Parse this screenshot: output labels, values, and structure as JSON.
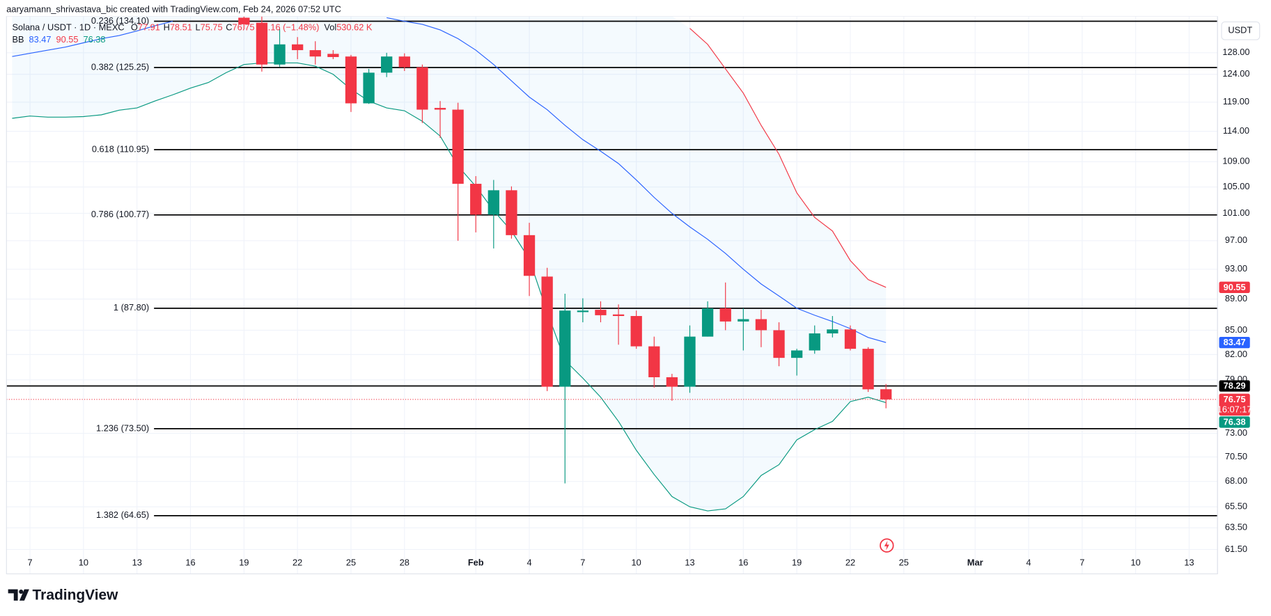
{
  "header": {
    "credit": "aaryamann_shrivastava_bic created with TradingView.com, Feb 24, 2026 07:52 UTC"
  },
  "legend": {
    "symbol": "Solana / USDT · 1D · MEXC",
    "ohlc_labels": [
      "O",
      "H",
      "L",
      "C"
    ],
    "change": "−1.16 (−1.48%)",
    "vol_label": "Vol",
    "volume": "530.62 K",
    "indicator": "BB"
  },
  "currency": "USDT",
  "countdown": "16:07:17",
  "footer": {
    "brand": "TradingView"
  },
  "chart_data": {
    "type": "candlestick",
    "log_scale": true,
    "grid": true,
    "up_color": "#089981",
    "down_color": "#f23645",
    "band_fill": "#2196f3",
    "x": [
      6,
      7,
      8,
      9,
      10,
      11,
      12,
      13,
      14,
      15,
      16,
      17,
      18,
      19,
      20,
      21,
      22,
      23,
      24,
      25,
      26,
      27,
      28,
      29,
      30,
      31,
      32,
      33,
      34,
      35,
      36,
      37,
      38,
      39,
      40,
      41,
      42,
      43,
      44,
      45,
      46,
      47,
      48,
      49,
      50,
      51,
      52,
      53,
      54,
      55
    ],
    "open": [
      null,
      null,
      null,
      null,
      null,
      null,
      null,
      null,
      null,
      null,
      null,
      null,
      null,
      134.8,
      133.8,
      125.8,
      129.6,
      128.5,
      127.8,
      127.3,
      118.8,
      124.3,
      127.3,
      125.3,
      118.0,
      117.7,
      105.5,
      100.8,
      104.5,
      97.8,
      92.0,
      78.2,
      87.3,
      87.6,
      87.0,
      86.8,
      83.0,
      79.3,
      78.2,
      84.2,
      87.8,
      86.1,
      86.4,
      85.0,
      81.6,
      82.5,
      84.6,
      85.1,
      82.7,
      77.91
    ],
    "high": [
      null,
      null,
      null,
      null,
      null,
      null,
      null,
      null,
      null,
      null,
      null,
      null,
      null,
      136.5,
      136.0,
      132.6,
      131.0,
      130.2,
      128.5,
      127.6,
      125.0,
      128.0,
      127.9,
      125.8,
      119.2,
      118.9,
      106.7,
      106.1,
      105.1,
      99.6,
      93.2,
      89.7,
      89.1,
      88.7,
      88.3,
      87.5,
      84.2,
      79.7,
      85.6,
      88.7,
      91.2,
      87.8,
      87.6,
      86.0,
      82.7,
      85.6,
      86.8,
      85.6,
      82.9,
      78.51
    ],
    "low": [
      null,
      null,
      null,
      null,
      null,
      null,
      null,
      null,
      null,
      null,
      null,
      null,
      null,
      132.5,
      124.5,
      125.4,
      126.8,
      125.8,
      126.8,
      117.3,
      118.7,
      123.5,
      124.6,
      115.4,
      112.9,
      97.0,
      98.2,
      95.9,
      97.3,
      89.4,
      77.7,
      67.8,
      86.0,
      86.0,
      83.2,
      82.7,
      78.1,
      76.6,
      77.5,
      84.2,
      85.0,
      82.5,
      82.9,
      80.6,
      79.5,
      82.1,
      84.1,
      82.5,
      77.6,
      75.75
    ],
    "close": [
      null,
      null,
      null,
      null,
      null,
      null,
      null,
      null,
      null,
      null,
      null,
      null,
      null,
      133.5,
      125.8,
      129.6,
      128.5,
      127.3,
      127.2,
      118.8,
      124.3,
      127.3,
      125.3,
      117.7,
      117.7,
      105.5,
      100.8,
      104.5,
      97.8,
      92.1,
      78.2,
      87.5,
      87.5,
      86.9,
      86.8,
      83.0,
      79.3,
      78.2,
      84.2,
      87.8,
      86.1,
      86.4,
      85.0,
      81.6,
      82.5,
      84.6,
      85.1,
      82.7,
      77.9,
      76.75
    ],
    "series": [
      {
        "color": "#2962ff",
        "values": [
          127.3,
          127.9,
          128.5,
          129.1,
          129.9,
          130.7,
          131.3,
          132.2,
          133.2,
          134.1,
          null,
          null,
          null,
          null,
          null,
          null,
          null,
          null,
          null,
          null,
          null,
          134.8,
          134.1,
          133.5,
          132.4,
          130.7,
          128.5,
          125.8,
          122.8,
          119.9,
          117.7,
          115.0,
          112.6,
          110.7,
          108.7,
          106.1,
          103.4,
          101.0,
          99.0,
          97.2,
          95.2,
          93.0,
          91.0,
          89.4,
          87.8,
          86.9,
          86.1,
          85.2,
          84.1,
          83.47
        ]
      },
      {
        "color": "#f23645",
        "values": [
          null,
          null,
          null,
          null,
          null,
          null,
          null,
          null,
          null,
          null,
          null,
          null,
          null,
          null,
          null,
          null,
          null,
          null,
          null,
          null,
          null,
          null,
          null,
          null,
          null,
          null,
          null,
          null,
          null,
          null,
          null,
          null,
          null,
          null,
          null,
          null,
          null,
          null,
          132.7,
          129.6,
          125.0,
          120.6,
          115.0,
          110.2,
          104.1,
          100.4,
          98.4,
          94.2,
          91.6,
          90.55
        ]
      },
      {
        "color": "#089981",
        "values": [
          116.2,
          116.6,
          116.4,
          116.4,
          116.5,
          116.8,
          117.6,
          118.0,
          119.2,
          120.3,
          121.5,
          122.5,
          124.3,
          125.8,
          126.1,
          126.1,
          126.1,
          125.5,
          124.0,
          121.3,
          119.2,
          118.0,
          117.5,
          115.7,
          113.2,
          108.3,
          105.1,
          101.4,
          98.4,
          94.4,
          87.3,
          81.3,
          79.2,
          77.0,
          74.3,
          71.2,
          68.7,
          66.5,
          65.5,
          65.1,
          65.3,
          66.5,
          68.6,
          69.7,
          72.3,
          73.4,
          74.3,
          76.5,
          77.0,
          76.38
        ]
      }
    ],
    "fib_levels": [
      {
        "value": 134.1,
        "label": "0.236 (134.10)"
      },
      {
        "value": 125.25,
        "label": "0.382 (125.25)"
      },
      {
        "value": 110.95,
        "label": "0.618 (110.95)"
      },
      {
        "value": 100.77,
        "label": "0.786 (100.77)"
      },
      {
        "value": 87.8,
        "label": "1 (87.80)"
      },
      {
        "value": 73.5,
        "label": "1.236 (73.50)"
      },
      {
        "value": 64.65,
        "label": "1.382 (64.65)"
      }
    ],
    "hline": 78.29,
    "xlim": [
      5.682,
      73.59
    ],
    "ylim": [
      59.33,
      135.1
    ],
    "xticks": [
      7,
      10,
      13,
      16,
      19,
      22,
      25,
      28,
      {
        "value": 32,
        "label": "Feb"
      },
      {
        "value": 35,
        "label": "4"
      },
      {
        "value": 38,
        "label": "7"
      },
      {
        "value": 41,
        "label": "10"
      },
      {
        "value": 44,
        "label": "13"
      },
      {
        "value": 47,
        "label": "16"
      },
      {
        "value": 50,
        "label": "19"
      },
      {
        "value": 53,
        "label": "22"
      },
      {
        "value": 56,
        "label": "25"
      },
      {
        "value": 60,
        "label": "Mar"
      },
      {
        "value": 63,
        "label": "4"
      },
      {
        "value": 66,
        "label": "7"
      },
      {
        "value": 69,
        "label": "10"
      },
      {
        "value": 72,
        "label": "13"
      }
    ],
    "yticks": [
      {
        "value": 61.5,
        "label": "61.50"
      },
      {
        "value": 63.5,
        "label": "63.50"
      },
      {
        "value": 65.5,
        "label": "65.50"
      },
      {
        "value": 68,
        "label": "68.00"
      },
      {
        "value": 70.5,
        "label": "70.50"
      },
      {
        "value": 73,
        "label": "73.00"
      },
      {
        "value": 79,
        "label": "79.00"
      },
      {
        "value": 82,
        "label": "82.00"
      },
      {
        "value": 85,
        "label": "85.00"
      },
      {
        "value": 89,
        "label": "89.00"
      },
      {
        "value": 93,
        "label": "93.00"
      },
      {
        "value": 97,
        "label": "97.00"
      },
      {
        "value": 101,
        "label": "101.00"
      },
      {
        "value": 105,
        "label": "105.00"
      },
      {
        "value": 109,
        "label": "109.00"
      },
      {
        "value": 114,
        "label": "114.00"
      },
      {
        "value": 119,
        "label": "119.00"
      },
      {
        "value": 124,
        "label": "124.00"
      },
      {
        "value": 128,
        "label": "128.00"
      }
    ]
  }
}
